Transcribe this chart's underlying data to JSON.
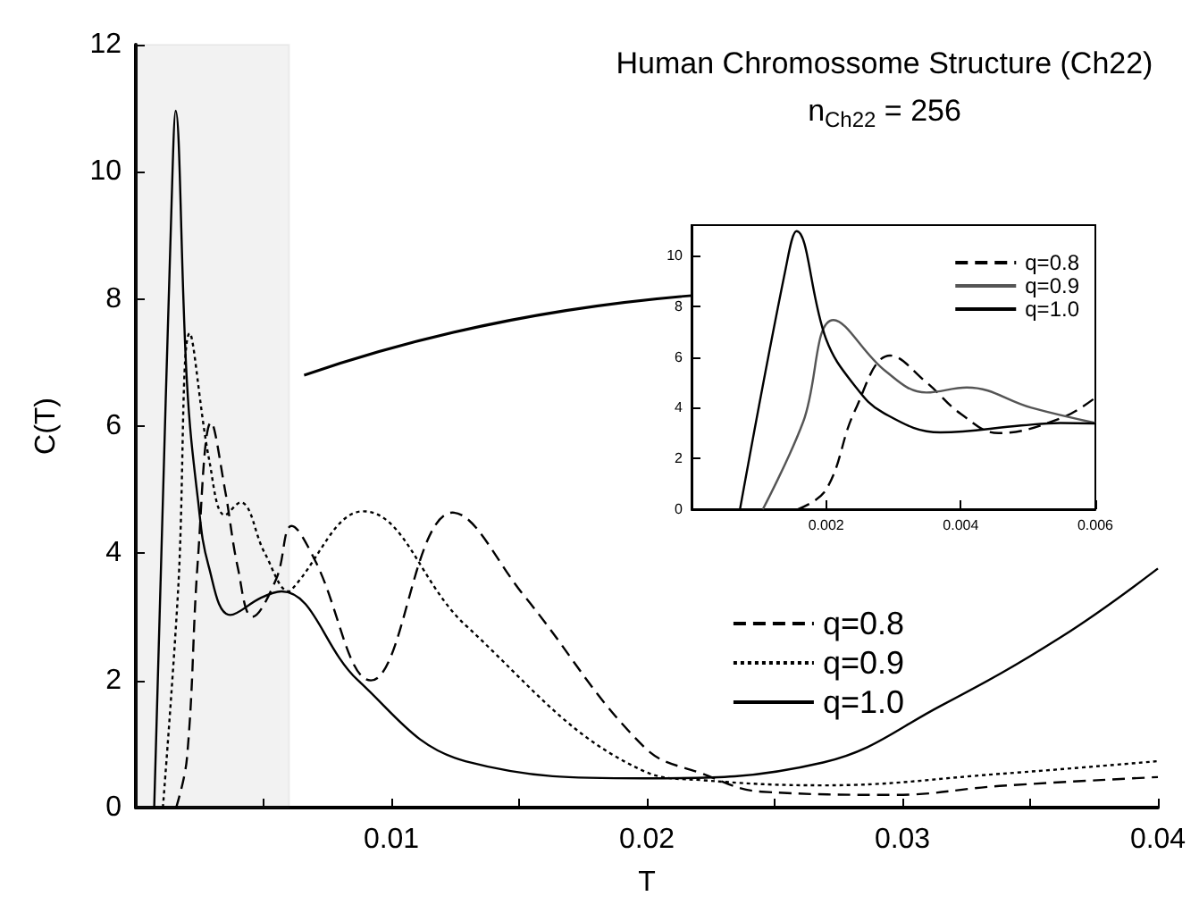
{
  "chart_data": [
    {
      "type": "line",
      "title": "Human Chromossome Structure (Ch22)",
      "subtitle": "n$_{Ch22}$ = 256",
      "xlabel": "T",
      "ylabel": "C(T)",
      "xlim": [
        0,
        0.04
      ],
      "xticks": [
        {
          "value": 0,
          "label": null
        },
        {
          "value": 0.005,
          "label": null
        },
        0.01,
        {
          "value": 0.015,
          "label": null
        },
        0.02,
        {
          "value": 0.025,
          "label": null
        },
        0.03,
        {
          "value": 0.035,
          "label": null
        },
        0.04
      ],
      "ylim": [
        0,
        12
      ],
      "yticks": [
        0,
        2,
        4,
        6,
        8,
        10,
        12
      ],
      "grid": false,
      "legend": "bottom right",
      "marker": "none",
      "bands": [
        {
          "axis": "x",
          "from": 0,
          "to": 0.006,
          "color": "#555555"
        }
      ],
      "series": [
        {
          "name": "q=0.8",
          "color": "#000000",
          "line_style": "dashed",
          "x": [
            0.00158,
            0.002,
            0.00243,
            0.00295,
            0.00349,
            0.004,
            0.00456,
            0.0055,
            0.0061,
            0.007,
            0.0092,
            0.0124,
            0.0152,
            0.0199,
            0.0222,
            0.0245,
            0.0297,
            0.0338,
            0.04
          ],
          "values": [
            0,
            0.77,
            3.9,
            6.06,
            5.0,
            3.76,
            3.0,
            3.6,
            4.43,
            3.9,
            2.0,
            4.64,
            3.33,
            0.95,
            0.53,
            0.25,
            0.2,
            0.34,
            0.48
          ]
        },
        {
          "name": "q=0.9",
          "color": "#000000",
          "line_style": "dotted",
          "x": [
            0.00106,
            0.00166,
            0.00211,
            0.00288,
            0.00349,
            0.00409,
            0.00505,
            0.006,
            0.0061,
            0.0089,
            0.0129,
            0.0199,
            0.0222,
            0.0269,
            0.0338,
            0.04
          ],
          "values": [
            0,
            3.45,
            7.46,
            5.45,
            4.6,
            4.8,
            4.0,
            3.4,
            3.43,
            4.66,
            2.87,
            0.57,
            0.43,
            0.35,
            0.53,
            0.73
          ]
        },
        {
          "name": "q=1.0",
          "color": "#000000",
          "line_style": "solid",
          "x": [
            0.00072,
            0.0014,
            0.00156,
            0.002,
            0.00243,
            0.00285,
            0.0037,
            0.0049,
            0.0057,
            0.0087,
            0.0129,
            0.0199,
            0.0269,
            0.0315,
            0.0362,
            0.04
          ],
          "values": [
            0,
            9.5,
            10.96,
            6.7,
            4.85,
            3.8,
            3.03,
            3.3,
            3.4,
            2.0,
            0.73,
            0.46,
            0.71,
            1.6,
            2.68,
            3.76
          ]
        }
      ]
    },
    {
      "type": "line",
      "xlim": [
        0,
        0.006
      ],
      "xticks": [
        0.002,
        0.004,
        0.006
      ],
      "ylim": [
        0,
        11.2
      ],
      "yticks": [
        0,
        2,
        4,
        6,
        8,
        10
      ],
      "grid": false,
      "legend": "top right",
      "marker": "none",
      "series": [
        {
          "name": "q=0.8",
          "color": "#000000",
          "line_style": "dashed",
          "x": [
            0.00158,
            0.002,
            0.00243,
            0.00295,
            0.00349,
            0.004,
            0.00456,
            0.0055,
            0.006
          ],
          "values": [
            0,
            0.77,
            3.9,
            6.06,
            5.0,
            3.76,
            3.0,
            3.6,
            4.4
          ]
        },
        {
          "name": "q=0.9",
          "color": "#555555",
          "line_style": "solid",
          "x": [
            0.00106,
            0.00166,
            0.00211,
            0.00288,
            0.00349,
            0.00409,
            0.00505,
            0.006
          ],
          "values": [
            0,
            3.45,
            7.46,
            5.45,
            4.6,
            4.8,
            4.0,
            3.4
          ]
        },
        {
          "name": "q=1.0",
          "color": "#000000",
          "line_style": "solid",
          "x": [
            0.00072,
            0.0014,
            0.00156,
            0.002,
            0.00243,
            0.00285,
            0.0037,
            0.0049,
            0.00548,
            0.006
          ],
          "values": [
            0,
            9.5,
            10.96,
            6.7,
            4.85,
            3.8,
            3.03,
            3.3,
            3.4,
            3.38
          ]
        }
      ]
    }
  ]
}
